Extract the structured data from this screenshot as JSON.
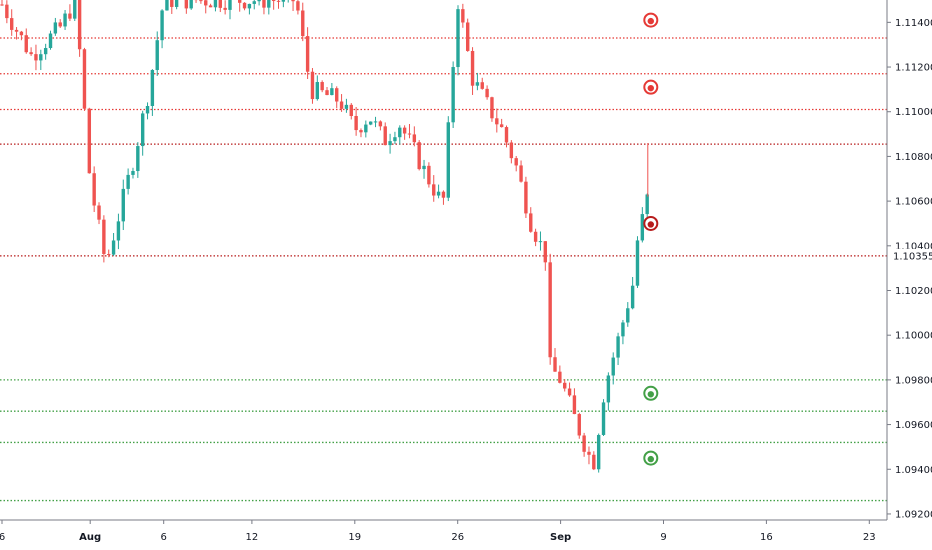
{
  "colors": {
    "up": "#26a69a",
    "down": "#ef5350",
    "resistance": "#e53935",
    "resistance_dark": "#b71c1c",
    "support": "#43a047",
    "axis": "#787b86",
    "text": "#131722"
  },
  "chart_data": {
    "type": "candlestick",
    "title": "",
    "xlabel": "",
    "ylabel": "",
    "ylim": [
      1.091,
      1.115
    ],
    "y_ticks": [
      "1.11400",
      "1.11200",
      "1.11000",
      "1.10800",
      "1.10600",
      "1.10400",
      "1.10200",
      "1.10000",
      "1.09800",
      "1.09600",
      "1.09400",
      "1.09200"
    ],
    "x_ticks": [
      {
        "label": "6",
        "date": "2019-07-26"
      },
      {
        "label": "Aug",
        "date": "2019-08-01"
      },
      {
        "label": "6",
        "date": "2019-08-06"
      },
      {
        "label": "12",
        "date": "2019-08-12"
      },
      {
        "label": "19",
        "date": "2019-08-19"
      },
      {
        "label": "26",
        "date": "2019-08-26"
      },
      {
        "label": "Sep",
        "date": "2019-09-02"
      },
      {
        "label": "9",
        "date": "2019-09-09"
      },
      {
        "label": "16",
        "date": "2019-09-16"
      },
      {
        "label": "23",
        "date": "2019-09-23"
      }
    ],
    "last_price": "1.10355",
    "resistance_levels": [
      1.1133,
      1.1117,
      1.1101,
      1.10855
    ],
    "key_level": 1.10355,
    "support_levels": [
      1.098,
      1.0966,
      1.0952,
      1.0926
    ],
    "markers": [
      {
        "kind": "resistance",
        "date": "2019-09-08",
        "price": 1.1141
      },
      {
        "kind": "resistance",
        "date": "2019-09-08",
        "price": 1.1111
      },
      {
        "kind": "resistance_dark",
        "date": "2019-09-08",
        "price": 1.105
      },
      {
        "kind": "support",
        "date": "2019-09-08",
        "price": 1.0974
      },
      {
        "kind": "support",
        "date": "2019-09-08",
        "price": 1.0945
      }
    ],
    "series_path": [
      {
        "date": "2019-07-26",
        "price": 1.1148
      },
      {
        "date": "2019-07-28",
        "price": 1.1125
      },
      {
        "date": "2019-07-30",
        "price": 1.1138
      },
      {
        "date": "2019-07-31",
        "price": 1.115
      },
      {
        "date": "2019-08-01",
        "price": 1.1068
      },
      {
        "date": "2019-08-02",
        "price": 1.1034
      },
      {
        "date": "2019-08-02",
        "price": 1.103
      },
      {
        "date": "2019-08-04",
        "price": 1.108
      },
      {
        "date": "2019-08-05",
        "price": 1.111
      },
      {
        "date": "2019-08-06",
        "price": 1.115
      },
      {
        "date": "2019-08-15",
        "price": 1.115
      },
      {
        "date": "2019-08-16",
        "price": 1.111
      },
      {
        "date": "2019-08-18",
        "price": 1.1105
      },
      {
        "date": "2019-08-19",
        "price": 1.1092
      },
      {
        "date": "2019-08-20",
        "price": 1.1098
      },
      {
        "date": "2019-08-21",
        "price": 1.1087
      },
      {
        "date": "2019-08-22",
        "price": 1.1095
      },
      {
        "date": "2019-08-23",
        "price": 1.1083
      },
      {
        "date": "2019-08-24",
        "price": 1.107
      },
      {
        "date": "2019-08-25",
        "price": 1.1058
      },
      {
        "date": "2019-08-26",
        "price": 1.115
      },
      {
        "date": "2019-08-27",
        "price": 1.1115
      },
      {
        "date": "2019-08-28",
        "price": 1.1103
      },
      {
        "date": "2019-08-29",
        "price": 1.1092
      },
      {
        "date": "2019-08-30",
        "price": 1.1075
      },
      {
        "date": "2019-08-31",
        "price": 1.105
      },
      {
        "date": "2019-09-01",
        "price": 1.1035
      },
      {
        "date": "2019-09-01",
        "price": 1.0988
      },
      {
        "date": "2019-09-02",
        "price": 1.098
      },
      {
        "date": "2019-09-03",
        "price": 1.0962
      },
      {
        "date": "2019-09-04",
        "price": 1.0945
      },
      {
        "date": "2019-09-04",
        "price": 1.0932
      },
      {
        "date": "2019-09-05",
        "price": 1.0977
      },
      {
        "date": "2019-09-06",
        "price": 1.1
      },
      {
        "date": "2019-09-07",
        "price": 1.1025
      },
      {
        "date": "2019-09-07",
        "price": 1.1036
      },
      {
        "date": "2019-09-08",
        "price": 1.1064
      },
      {
        "date": "2019-09-08",
        "price": 1.1036
      }
    ]
  }
}
